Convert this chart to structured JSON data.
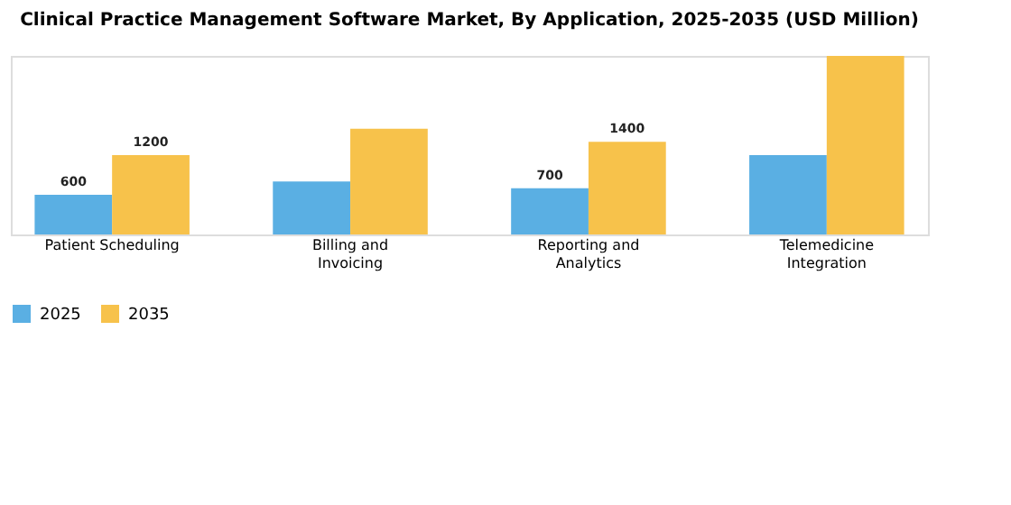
{
  "chart_data": {
    "type": "bar",
    "title": "Clinical Practice Management Software Market, By Application, 2025-2035 (USD Million)",
    "categories": [
      "Patient Scheduling",
      "Billing and Invoicing",
      "Reporting and Analytics",
      "Telemedicine Integration"
    ],
    "series": [
      {
        "name": "2025",
        "color": "#5aafe3",
        "values": [
          600,
          800,
          700,
          1200
        ],
        "value_labels": [
          "600",
          null,
          "700",
          null
        ]
      },
      {
        "name": "2035",
        "color": "#f7c24b",
        "values": [
          1200,
          1600,
          1400,
          2700
        ],
        "value_labels": [
          "1200",
          null,
          "1400",
          null
        ]
      }
    ],
    "legend": "bottom",
    "grid": false
  }
}
